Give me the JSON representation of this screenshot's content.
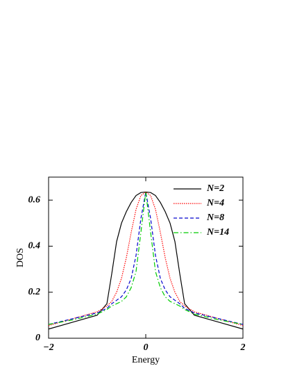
{
  "chart_data": {
    "type": "line",
    "xlabel": "Energy",
    "ylabel": "DOS",
    "x": [
      -2,
      -1.5,
      -1,
      -0.8,
      -0.7,
      -0.6,
      -0.5,
      -0.4,
      -0.3,
      -0.2,
      -0.1,
      0,
      0.1,
      0.2,
      0.3,
      0.4,
      0.5,
      0.6,
      0.7,
      0.8,
      1,
      1.5,
      2
    ],
    "series": [
      {
        "name": "N=2",
        "color": "#000000",
        "dash": "solid",
        "values": [
          0.04,
          0.07,
          0.1,
          0.15,
          0.28,
          0.42,
          0.5,
          0.55,
          0.59,
          0.62,
          0.633,
          0.635,
          0.633,
          0.62,
          0.59,
          0.55,
          0.5,
          0.42,
          0.28,
          0.15,
          0.1,
          0.07,
          0.04
        ]
      },
      {
        "name": "N=4",
        "color": "#ff0000",
        "dash": "dotted",
        "values": [
          0.055,
          0.085,
          0.115,
          0.14,
          0.16,
          0.2,
          0.26,
          0.35,
          0.46,
          0.56,
          0.62,
          0.635,
          0.62,
          0.56,
          0.46,
          0.35,
          0.26,
          0.2,
          0.16,
          0.14,
          0.115,
          0.085,
          0.055
        ]
      },
      {
        "name": "N=8",
        "color": "#0000cc",
        "dash": "dashed",
        "values": [
          0.06,
          0.085,
          0.11,
          0.13,
          0.15,
          0.165,
          0.18,
          0.21,
          0.26,
          0.36,
          0.52,
          0.635,
          0.52,
          0.36,
          0.26,
          0.21,
          0.18,
          0.165,
          0.15,
          0.13,
          0.11,
          0.085,
          0.06
        ]
      },
      {
        "name": "N=14",
        "color": "#00cc00",
        "dash": "dashdot",
        "values": [
          0.06,
          0.08,
          0.105,
          0.125,
          0.14,
          0.15,
          0.16,
          0.18,
          0.22,
          0.29,
          0.46,
          0.635,
          0.46,
          0.29,
          0.22,
          0.18,
          0.16,
          0.15,
          0.14,
          0.125,
          0.105,
          0.08,
          0.06
        ]
      }
    ],
    "xlim": [
      -2,
      2
    ],
    "ylim": [
      0,
      0.7
    ],
    "xticks": [
      {
        "value": -2,
        "label": "−2"
      },
      0,
      2
    ],
    "yticks": [
      0,
      0.2,
      0.4,
      0.6
    ],
    "legend": "upper right"
  }
}
